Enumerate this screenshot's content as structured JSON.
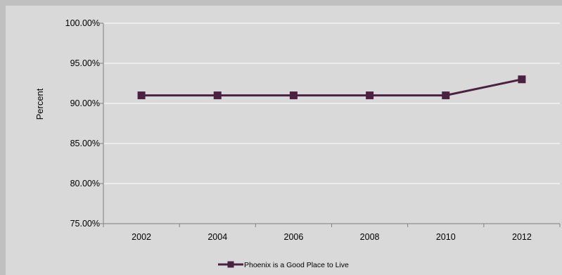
{
  "chart_data": {
    "type": "line",
    "categories": [
      "2002",
      "2004",
      "2006",
      "2008",
      "2010",
      "2012"
    ],
    "series": [
      {
        "name": "Phoenix is a Good Place to Live",
        "values": [
          91,
          91,
          91,
          91,
          91,
          93
        ],
        "color": "#4b2142",
        "marker": "square"
      }
    ],
    "ylabel": "Percent",
    "ylim": [
      75,
      100
    ],
    "yticks": [
      {
        "value": 75,
        "label": "75.00%"
      },
      {
        "value": 80,
        "label": "80.00%"
      },
      {
        "value": 85,
        "label": "85.00%"
      },
      {
        "value": 90,
        "label": "90.00%"
      },
      {
        "value": 95,
        "label": "95.00%"
      },
      {
        "value": 100,
        "label": "100.00%"
      }
    ],
    "grid": true,
    "legend_position": "bottom",
    "colors": {
      "outer_background": "#c0c0c0",
      "plot_background": "#d9d9d9",
      "gridline": "#ffffff",
      "axis": "#808080"
    }
  }
}
